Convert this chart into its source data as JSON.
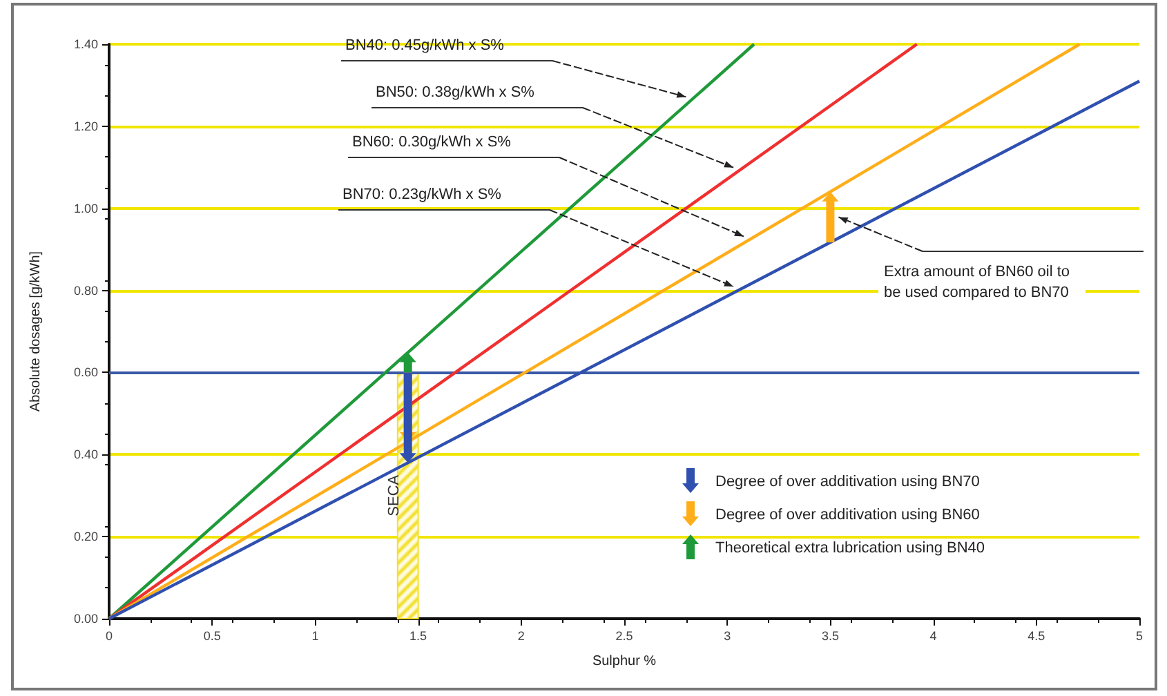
{
  "chart_data": {
    "type": "line",
    "xlabel": "Sulphur %",
    "ylabel": "Absolute dosages [g/kWh]",
    "xlim": [
      0,
      5
    ],
    "xticks": [
      0,
      0.5,
      1,
      1.5,
      2,
      2.5,
      3,
      3.5,
      4,
      4.5,
      5
    ],
    "ylim": [
      0,
      1.4
    ],
    "yticks": [
      {
        "value": 0,
        "label": "0.00"
      },
      {
        "value": 0.2,
        "label": "0.20"
      },
      {
        "value": 0.4,
        "label": "0.40"
      },
      {
        "value": 0.6,
        "label": "0.60"
      },
      {
        "value": 0.8,
        "label": "0.80"
      },
      {
        "value": 1,
        "label": "1.00"
      },
      {
        "value": 1.2,
        "label": "1.20"
      },
      {
        "value": 1.4,
        "label": "1.40"
      }
    ],
    "grid": "y",
    "marker": "none",
    "series": [
      {
        "color": "#1f9a3a",
        "x": [
          0,
          3.13
        ],
        "values": [
          0,
          1.4
        ]
      },
      {
        "color": "#f03030",
        "x": [
          0,
          3.92
        ],
        "values": [
          0,
          1.4
        ]
      },
      {
        "color": "#ffae1a",
        "x": [
          0,
          4.71
        ],
        "values": [
          0,
          1.4
        ]
      },
      {
        "color": "#3050b0",
        "x": [
          0,
          5
        ],
        "values": [
          0,
          1.31
        ]
      }
    ],
    "ref_lines": [
      {
        "axis": "y",
        "value": 0.6,
        "color": "#3a5aa8"
      }
    ],
    "bands": [
      {
        "axis": "x",
        "from": 1.4,
        "to": 1.5,
        "label": "SECA",
        "color": "#f2e030"
      }
    ],
    "annotations": [
      "BN40: 0.45g/kWh x S%",
      "BN50: 0.38g/kWh x S%",
      "BN60: 0.30g/kWh x S%",
      "BN70: 0.23g/kWh x S%",
      "Extra amount of BN60 oil to be used compared to BN70",
      "Degree of over additivation using BN70",
      "Degree of over additivation using BN60",
      "Theoretical extra lubrication using BN40"
    ]
  }
}
